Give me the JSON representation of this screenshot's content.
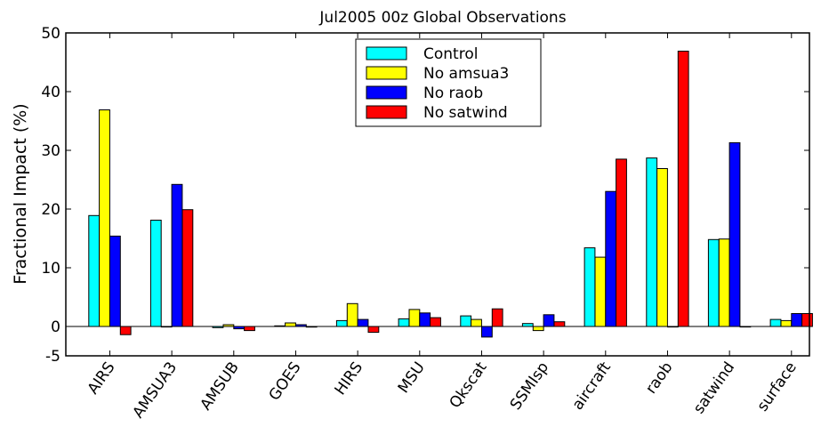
{
  "chart_data": {
    "type": "bar",
    "title": "Jul2005 00z  Global Observations",
    "xlabel": "",
    "ylabel": "Fractional Impact (%)",
    "ylim": [
      -5,
      50
    ],
    "yticks": [
      -5,
      0,
      10,
      20,
      30,
      40,
      50
    ],
    "yticklabels": [
      "-5",
      "0",
      "10",
      "20",
      "30",
      "40",
      "50"
    ],
    "grid": false,
    "legend_position": "top-center",
    "categories": [
      "AIRS",
      "AMSUA3",
      "AMSUB",
      "GOES",
      "HIRS",
      "MSU",
      "Qkscat",
      "SSMIsp",
      "aircraft",
      "raob",
      "satwind",
      "surface"
    ],
    "series": [
      {
        "name": "Control",
        "color": "#00ffff",
        "values": [
          18.9,
          18.1,
          -0.2,
          0.1,
          1.0,
          1.3,
          1.8,
          0.5,
          13.4,
          28.7,
          14.8,
          1.2
        ]
      },
      {
        "name": "No amsua3",
        "color": "#ffff00",
        "values": [
          36.9,
          0.0,
          0.3,
          0.6,
          3.9,
          2.9,
          1.2,
          -0.7,
          11.8,
          26.9,
          14.9,
          1.0
        ]
      },
      {
        "name": "No raob",
        "color": "#0000ff",
        "values": [
          15.4,
          24.2,
          -0.4,
          0.3,
          1.2,
          2.3,
          -1.8,
          2.0,
          23.0,
          0.0,
          31.3,
          2.2
        ]
      },
      {
        "name": "No satwind",
        "color": "#ff0000",
        "values": [
          -1.4,
          19.9,
          -0.7,
          -0.1,
          -1.0,
          1.5,
          3.0,
          0.8,
          28.5,
          46.9,
          0.0,
          2.2
        ]
      }
    ]
  }
}
